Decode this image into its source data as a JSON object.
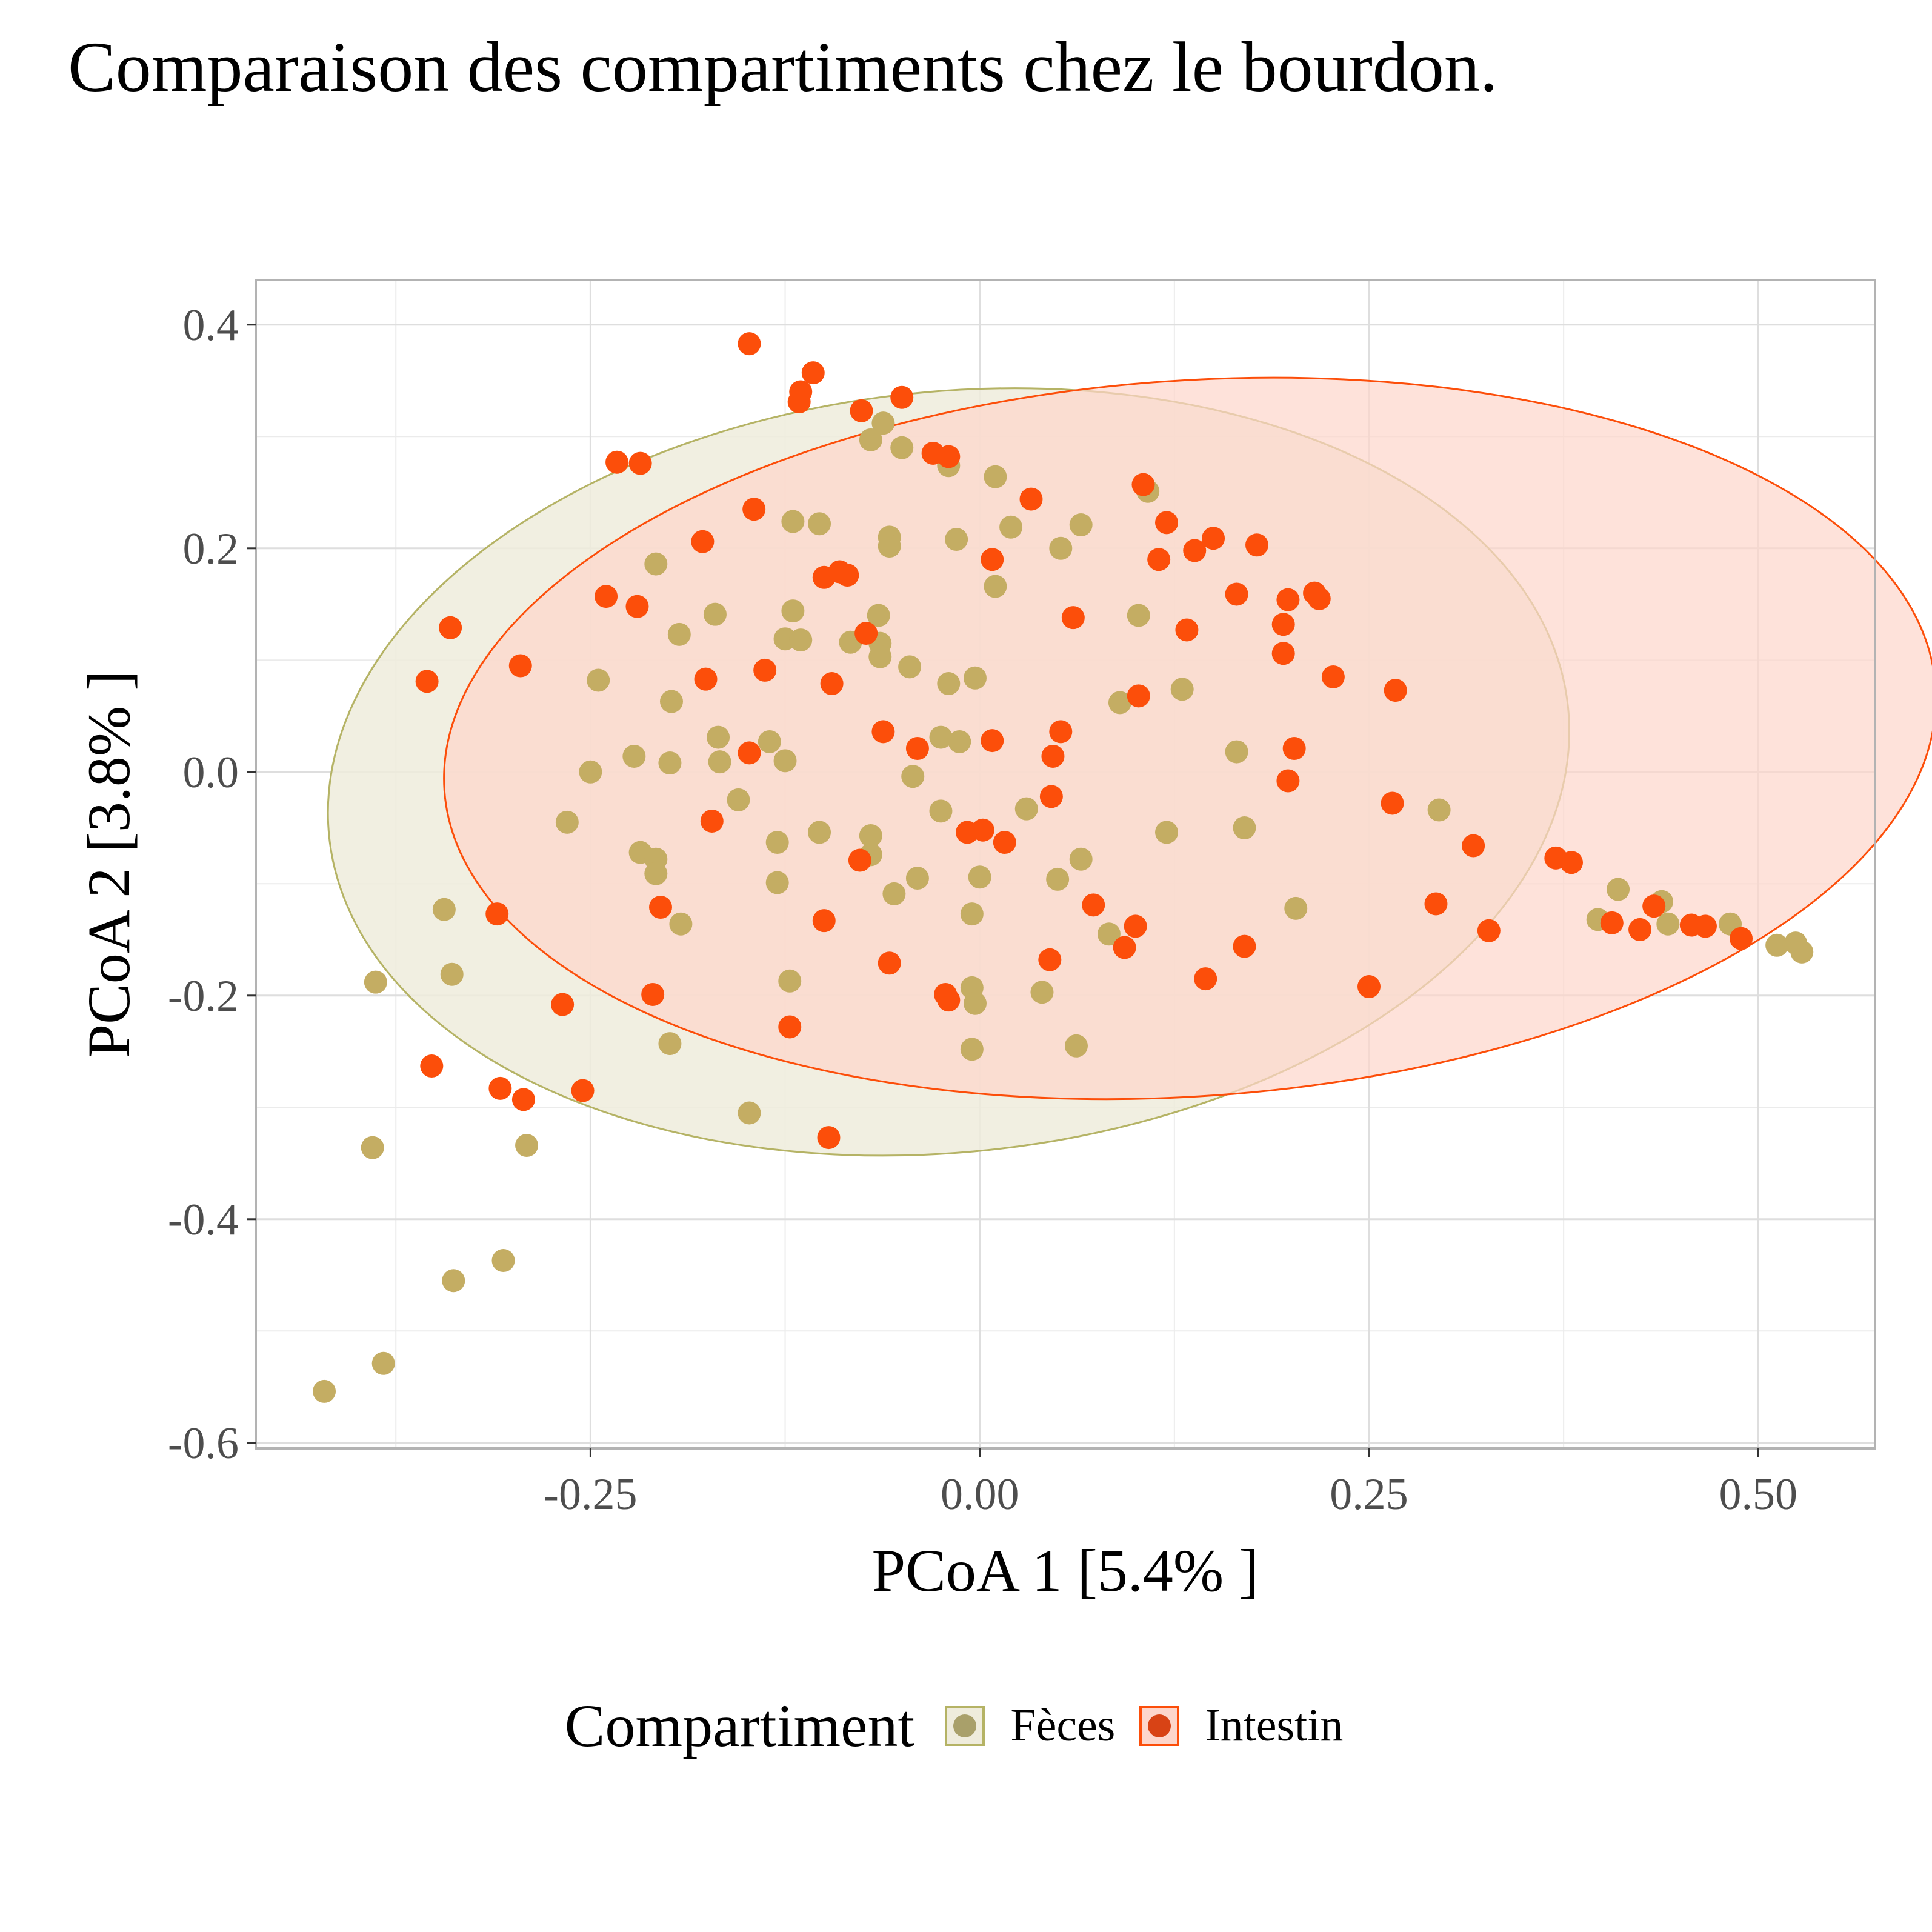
{
  "chart_data": {
    "type": "scatter",
    "title": "Comparaison des compartiments chez le bourdon.",
    "xlabel": "PCoA 1 [5.4% ]",
    "ylabel": "PCoA 2 [3.8% ]",
    "xlim": [
      -0.465,
      0.575
    ],
    "ylim": [
      -0.605,
      0.44
    ],
    "x_ticks": [
      -0.25,
      0.0,
      0.25,
      0.5
    ],
    "x_tick_labels": [
      "-0.25",
      "0.00",
      "0.25",
      "0.50"
    ],
    "y_ticks": [
      0.4,
      0.2,
      0.0,
      -0.2,
      -0.4,
      -0.6
    ],
    "y_tick_labels": [
      "0.4",
      "0.2",
      "0.0",
      "-0.2",
      "-0.4",
      "-0.6"
    ],
    "grid": true,
    "legend": {
      "title": "Compartiment",
      "position": "bottom",
      "entries": [
        "Fèces",
        "Intestin"
      ]
    },
    "colors": {
      "Fèces": "#c4ad63",
      "Intestin": "#fc4e0a",
      "Fèces_outer": "#b5b365",
      "Fèces_ellipse_fill": "#efecdc",
      "Intestin_ellipse_fill": "#fdd6cb",
      "legend_feces_dot": "#a9a06a",
      "legend_intestin_dot": "#d84315"
    },
    "ellipses": [
      {
        "series": "Fèces",
        "center": [
          -0.02,
          0.0
        ],
        "rx": 0.4,
        "ry": 0.34,
        "angle_deg": -6
      },
      {
        "series": "Intestin",
        "center": [
          0.135,
          0.03
        ],
        "rx": 0.48,
        "ry": 0.32,
        "angle_deg": -4
      }
    ],
    "series": [
      {
        "name": "Fèces",
        "points": [
          [
            -0.421,
            -0.554
          ],
          [
            -0.383,
            -0.529
          ],
          [
            -0.39,
            -0.336
          ],
          [
            -0.388,
            -0.188
          ],
          [
            -0.344,
            -0.123
          ],
          [
            -0.339,
            -0.181
          ],
          [
            -0.338,
            -0.455
          ],
          [
            -0.306,
            -0.437
          ],
          [
            -0.291,
            -0.334
          ],
          [
            -0.199,
            -0.243
          ],
          [
            -0.148,
            -0.305
          ],
          [
            0.482,
            -0.136
          ],
          [
            0.512,
            -0.155
          ],
          [
            0.524,
            -0.153
          ],
          [
            0.528,
            -0.161
          ],
          [
            0.438,
            -0.116
          ],
          [
            0.41,
            -0.105
          ],
          [
            0.397,
            -0.132
          ],
          [
            0.442,
            -0.136
          ],
          [
            -0.062,
            0.312
          ],
          [
            -0.07,
            0.297
          ],
          [
            -0.05,
            0.29
          ],
          [
            -0.02,
            0.274
          ],
          [
            0.01,
            0.264
          ],
          [
            -0.12,
            0.224
          ],
          [
            -0.103,
            0.222
          ],
          [
            -0.058,
            0.21
          ],
          [
            -0.058,
            0.202
          ],
          [
            -0.015,
            0.208
          ],
          [
            0.02,
            0.219
          ],
          [
            0.052,
            0.2
          ],
          [
            0.065,
            0.221
          ],
          [
            0.108,
            0.251
          ],
          [
            -0.208,
            0.186
          ],
          [
            -0.17,
            0.141
          ],
          [
            -0.12,
            0.144
          ],
          [
            -0.065,
            0.14
          ],
          [
            0.01,
            0.166
          ],
          [
            -0.193,
            0.123
          ],
          [
            -0.125,
            0.119
          ],
          [
            -0.115,
            0.118
          ],
          [
            -0.083,
            0.116
          ],
          [
            -0.064,
            0.115
          ],
          [
            -0.064,
            0.103
          ],
          [
            -0.045,
            0.094
          ],
          [
            -0.02,
            0.079
          ],
          [
            -0.003,
            0.084
          ],
          [
            0.102,
            0.14
          ],
          [
            -0.245,
            0.082
          ],
          [
            -0.198,
            0.063
          ],
          [
            -0.168,
            0.031
          ],
          [
            -0.167,
            0.009
          ],
          [
            -0.135,
            0.027
          ],
          [
            -0.125,
            0.01
          ],
          [
            -0.222,
            0.014
          ],
          [
            -0.199,
            0.008
          ],
          [
            -0.25,
            0.0
          ],
          [
            -0.025,
            0.031
          ],
          [
            -0.013,
            0.027
          ],
          [
            0.09,
            0.062
          ],
          [
            0.13,
            0.074
          ],
          [
            0.165,
            0.018
          ],
          [
            -0.265,
            -0.045
          ],
          [
            -0.155,
            -0.025
          ],
          [
            -0.043,
            -0.004
          ],
          [
            -0.025,
            -0.035
          ],
          [
            -0.13,
            -0.063
          ],
          [
            -0.103,
            -0.054
          ],
          [
            -0.07,
            -0.057
          ],
          [
            -0.07,
            -0.074
          ],
          [
            -0.218,
            -0.072
          ],
          [
            -0.208,
            -0.078
          ],
          [
            -0.208,
            -0.091
          ],
          [
            0.03,
            -0.033
          ],
          [
            0.12,
            -0.054
          ],
          [
            0.17,
            -0.05
          ],
          [
            0.065,
            -0.078
          ],
          [
            -0.13,
            -0.099
          ],
          [
            -0.055,
            -0.109
          ],
          [
            -0.04,
            -0.095
          ],
          [
            0.0,
            -0.094
          ],
          [
            0.05,
            -0.096
          ],
          [
            -0.192,
            -0.136
          ],
          [
            -0.005,
            -0.127
          ],
          [
            0.083,
            -0.145
          ],
          [
            0.203,
            -0.122
          ],
          [
            -0.122,
            -0.187
          ],
          [
            -0.005,
            -0.193
          ],
          [
            -0.003,
            -0.207
          ],
          [
            0.04,
            -0.197
          ],
          [
            -0.005,
            -0.248
          ],
          [
            0.062,
            -0.245
          ],
          [
            0.295,
            -0.034
          ]
        ]
      },
      {
        "name": "Intestin",
        "points": [
          [
            -0.148,
            0.383
          ],
          [
            -0.107,
            0.357
          ],
          [
            -0.115,
            0.34
          ],
          [
            -0.116,
            0.331
          ],
          [
            -0.05,
            0.335
          ],
          [
            -0.076,
            0.323
          ],
          [
            -0.233,
            0.277
          ],
          [
            -0.218,
            0.276
          ],
          [
            -0.03,
            0.285
          ],
          [
            -0.02,
            0.282
          ],
          [
            -0.145,
            0.235
          ],
          [
            0.033,
            0.244
          ],
          [
            0.105,
            0.257
          ],
          [
            -0.178,
            0.206
          ],
          [
            0.008,
            0.19
          ],
          [
            0.12,
            0.223
          ],
          [
            0.115,
            0.19
          ],
          [
            0.138,
            0.198
          ],
          [
            0.15,
            0.209
          ],
          [
            0.178,
            0.203
          ],
          [
            -0.1,
            0.174
          ],
          [
            -0.09,
            0.179
          ],
          [
            -0.085,
            0.176
          ],
          [
            -0.24,
            0.157
          ],
          [
            -0.22,
            0.148
          ],
          [
            0.06,
            0.138
          ],
          [
            0.133,
            0.127
          ],
          [
            0.165,
            0.159
          ],
          [
            0.198,
            0.154
          ],
          [
            0.215,
            0.16
          ],
          [
            0.218,
            0.155
          ],
          [
            0.195,
            0.132
          ],
          [
            0.195,
            0.106
          ],
          [
            -0.34,
            0.129
          ],
          [
            -0.073,
            0.124
          ],
          [
            -0.138,
            0.091
          ],
          [
            -0.295,
            0.095
          ],
          [
            -0.355,
            0.081
          ],
          [
            -0.176,
            0.083
          ],
          [
            -0.095,
            0.079
          ],
          [
            0.227,
            0.085
          ],
          [
            0.267,
            0.073
          ],
          [
            0.102,
            0.068
          ],
          [
            -0.062,
            0.036
          ],
          [
            -0.04,
            0.021
          ],
          [
            -0.148,
            0.017
          ],
          [
            0.008,
            0.028
          ],
          [
            0.052,
            0.036
          ],
          [
            0.047,
            0.014
          ],
          [
            0.202,
            0.021
          ],
          [
            0.198,
            -0.008
          ],
          [
            0.046,
            -0.022
          ],
          [
            0.265,
            -0.028
          ],
          [
            -0.172,
            -0.044
          ],
          [
            -0.008,
            -0.054
          ],
          [
            0.002,
            -0.052
          ],
          [
            0.016,
            -0.063
          ],
          [
            0.317,
            -0.066
          ],
          [
            0.37,
            -0.077
          ],
          [
            0.38,
            -0.081
          ],
          [
            -0.077,
            -0.079
          ],
          [
            -0.205,
            -0.121
          ],
          [
            -0.1,
            -0.133
          ],
          [
            0.073,
            -0.119
          ],
          [
            0.1,
            -0.138
          ],
          [
            0.093,
            -0.157
          ],
          [
            0.17,
            -0.156
          ],
          [
            0.293,
            -0.118
          ],
          [
            0.327,
            -0.142
          ],
          [
            -0.31,
            -0.127
          ],
          [
            -0.058,
            -0.171
          ],
          [
            0.045,
            -0.168
          ],
          [
            0.145,
            -0.185
          ],
          [
            -0.21,
            -0.199
          ],
          [
            -0.022,
            -0.199
          ],
          [
            -0.02,
            -0.204
          ],
          [
            -0.122,
            -0.228
          ],
          [
            0.25,
            -0.192
          ],
          [
            0.406,
            -0.135
          ],
          [
            0.424,
            -0.141
          ],
          [
            0.433,
            -0.12
          ],
          [
            0.457,
            -0.137
          ],
          [
            0.466,
            -0.138
          ],
          [
            0.489,
            -0.149
          ],
          [
            -0.268,
            -0.208
          ],
          [
            -0.352,
            -0.263
          ],
          [
            -0.308,
            -0.283
          ],
          [
            -0.293,
            -0.293
          ],
          [
            -0.255,
            -0.285
          ],
          [
            -0.097,
            -0.327
          ]
        ]
      }
    ]
  }
}
